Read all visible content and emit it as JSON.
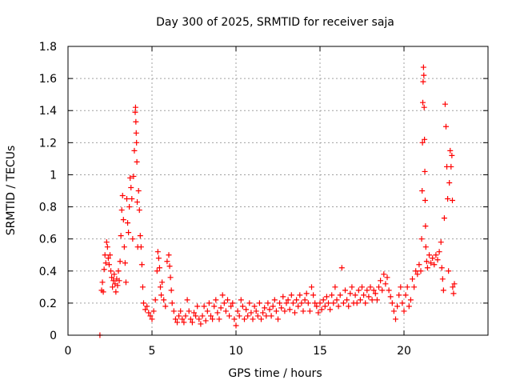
{
  "chart_data": {
    "type": "scatter",
    "title": "Day 300 of 2025, SRMTID for receiver saja",
    "xlabel": "GPS time / hours",
    "ylabel": "SRMTID / TECUs",
    "xlim": [
      0,
      25
    ],
    "ylim": [
      0,
      1.8
    ],
    "xticks": [
      0,
      5,
      10,
      15,
      20
    ],
    "yticks": [
      0,
      0.2,
      0.4,
      0.6,
      0.8,
      1,
      1.2,
      1.4,
      1.6,
      1.8
    ],
    "xtick_labels": [
      "0",
      "5",
      "10",
      "15",
      "20"
    ],
    "ytick_labels": [
      "0",
      "0.2",
      "0.4",
      "0.6",
      "0.8",
      "1",
      "1.2",
      "1.4",
      "1.6",
      "1.8"
    ],
    "grid": true,
    "marker": "+",
    "series": [
      {
        "name": "saja",
        "color": "#ff0000",
        "points": [
          [
            1.9,
            0.0
          ],
          [
            2.0,
            0.28
          ],
          [
            2.05,
            0.33
          ],
          [
            2.1,
            0.27
          ],
          [
            2.15,
            0.41
          ],
          [
            2.2,
            0.5
          ],
          [
            2.25,
            0.45
          ],
          [
            2.3,
            0.58
          ],
          [
            2.35,
            0.55
          ],
          [
            2.4,
            0.48
          ],
          [
            2.45,
            0.44
          ],
          [
            2.5,
            0.5
          ],
          [
            2.55,
            0.4
          ],
          [
            2.6,
            0.36
          ],
          [
            2.65,
            0.3
          ],
          [
            2.7,
            0.34
          ],
          [
            2.75,
            0.38
          ],
          [
            2.8,
            0.32
          ],
          [
            2.85,
            0.27
          ],
          [
            2.9,
            0.35
          ],
          [
            2.95,
            0.31
          ],
          [
            3.0,
            0.4
          ],
          [
            3.05,
            0.34
          ],
          [
            3.1,
            0.46
          ],
          [
            3.15,
            0.62
          ],
          [
            3.2,
            0.78
          ],
          [
            3.25,
            0.87
          ],
          [
            3.3,
            0.72
          ],
          [
            3.35,
            0.55
          ],
          [
            3.4,
            0.45
          ],
          [
            3.45,
            0.33
          ],
          [
            3.5,
            0.85
          ],
          [
            3.55,
            0.7
          ],
          [
            3.6,
            0.64
          ],
          [
            3.65,
            0.8
          ],
          [
            3.7,
            0.98
          ],
          [
            3.75,
            0.92
          ],
          [
            3.8,
            0.85
          ],
          [
            3.85,
            0.6
          ],
          [
            3.9,
            0.99
          ],
          [
            3.95,
            1.15
          ],
          [
            4.0,
            1.39
          ],
          [
            4.02,
            1.42
          ],
          [
            4.04,
            1.33
          ],
          [
            4.06,
            1.26
          ],
          [
            4.08,
            1.2
          ],
          [
            4.1,
            1.08
          ],
          [
            4.12,
            0.83
          ],
          [
            4.15,
            0.55
          ],
          [
            4.2,
            0.9
          ],
          [
            4.25,
            0.78
          ],
          [
            4.3,
            0.62
          ],
          [
            4.35,
            0.55
          ],
          [
            4.4,
            0.44
          ],
          [
            4.45,
            0.3
          ],
          [
            4.5,
            0.2
          ],
          [
            4.6,
            0.16
          ],
          [
            4.7,
            0.18
          ],
          [
            4.8,
            0.14
          ],
          [
            4.9,
            0.12
          ],
          [
            5.0,
            0.1
          ],
          [
            5.1,
            0.15
          ],
          [
            5.2,
            0.22
          ],
          [
            5.3,
            0.4
          ],
          [
            5.35,
            0.52
          ],
          [
            5.4,
            0.48
          ],
          [
            5.45,
            0.42
          ],
          [
            5.5,
            0.3
          ],
          [
            5.55,
            0.25
          ],
          [
            5.6,
            0.33
          ],
          [
            5.7,
            0.22
          ],
          [
            5.8,
            0.18
          ],
          [
            5.9,
            0.46
          ],
          [
            6.0,
            0.5
          ],
          [
            6.05,
            0.43
          ],
          [
            6.1,
            0.36
          ],
          [
            6.15,
            0.28
          ],
          [
            6.2,
            0.2
          ],
          [
            6.3,
            0.15
          ],
          [
            6.4,
            0.1
          ],
          [
            6.5,
            0.08
          ],
          [
            6.6,
            0.12
          ],
          [
            6.7,
            0.15
          ],
          [
            6.8,
            0.1
          ],
          [
            6.9,
            0.08
          ],
          [
            7.0,
            0.12
          ],
          [
            7.1,
            0.22
          ],
          [
            7.2,
            0.15
          ],
          [
            7.3,
            0.1
          ],
          [
            7.4,
            0.08
          ],
          [
            7.5,
            0.14
          ],
          [
            7.6,
            0.12
          ],
          [
            7.7,
            0.18
          ],
          [
            7.8,
            0.1
          ],
          [
            7.9,
            0.07
          ],
          [
            8.0,
            0.12
          ],
          [
            8.1,
            0.18
          ],
          [
            8.2,
            0.09
          ],
          [
            8.3,
            0.15
          ],
          [
            8.4,
            0.2
          ],
          [
            8.5,
            0.12
          ],
          [
            8.6,
            0.1
          ],
          [
            8.7,
            0.18
          ],
          [
            8.8,
            0.22
          ],
          [
            8.9,
            0.14
          ],
          [
            9.0,
            0.1
          ],
          [
            9.1,
            0.17
          ],
          [
            9.2,
            0.25
          ],
          [
            9.3,
            0.2
          ],
          [
            9.4,
            0.15
          ],
          [
            9.5,
            0.22
          ],
          [
            9.6,
            0.12
          ],
          [
            9.7,
            0.18
          ],
          [
            9.8,
            0.2
          ],
          [
            9.9,
            0.1
          ],
          [
            10.0,
            0.06
          ],
          [
            10.1,
            0.15
          ],
          [
            10.2,
            0.12
          ],
          [
            10.3,
            0.22
          ],
          [
            10.4,
            0.18
          ],
          [
            10.5,
            0.1
          ],
          [
            10.6,
            0.16
          ],
          [
            10.7,
            0.12
          ],
          [
            10.8,
            0.2
          ],
          [
            10.9,
            0.14
          ],
          [
            11.0,
            0.1
          ],
          [
            11.1,
            0.18
          ],
          [
            11.2,
            0.15
          ],
          [
            11.3,
            0.12
          ],
          [
            11.4,
            0.2
          ],
          [
            11.5,
            0.1
          ],
          [
            11.6,
            0.14
          ],
          [
            11.7,
            0.17
          ],
          [
            11.8,
            0.12
          ],
          [
            11.9,
            0.2
          ],
          [
            12.0,
            0.16
          ],
          [
            12.1,
            0.12
          ],
          [
            12.2,
            0.18
          ],
          [
            12.3,
            0.22
          ],
          [
            12.4,
            0.15
          ],
          [
            12.5,
            0.1
          ],
          [
            12.6,
            0.2
          ],
          [
            12.7,
            0.17
          ],
          [
            12.8,
            0.24
          ],
          [
            12.9,
            0.15
          ],
          [
            13.0,
            0.2
          ],
          [
            13.1,
            0.22
          ],
          [
            13.2,
            0.16
          ],
          [
            13.3,
            0.25
          ],
          [
            13.4,
            0.2
          ],
          [
            13.5,
            0.14
          ],
          [
            13.6,
            0.22
          ],
          [
            13.7,
            0.18
          ],
          [
            13.8,
            0.25
          ],
          [
            13.9,
            0.2
          ],
          [
            14.0,
            0.15
          ],
          [
            14.1,
            0.22
          ],
          [
            14.2,
            0.26
          ],
          [
            14.3,
            0.2
          ],
          [
            14.4,
            0.15
          ],
          [
            14.5,
            0.3
          ],
          [
            14.6,
            0.25
          ],
          [
            14.7,
            0.2
          ],
          [
            14.8,
            0.18
          ],
          [
            14.9,
            0.14
          ],
          [
            15.0,
            0.2
          ],
          [
            15.1,
            0.16
          ],
          [
            15.2,
            0.22
          ],
          [
            15.3,
            0.18
          ],
          [
            15.4,
            0.24
          ],
          [
            15.5,
            0.2
          ],
          [
            15.6,
            0.16
          ],
          [
            15.7,
            0.25
          ],
          [
            15.8,
            0.2
          ],
          [
            15.9,
            0.3
          ],
          [
            16.0,
            0.22
          ],
          [
            16.1,
            0.18
          ],
          [
            16.2,
            0.25
          ],
          [
            16.3,
            0.42
          ],
          [
            16.4,
            0.2
          ],
          [
            16.5,
            0.28
          ],
          [
            16.6,
            0.22
          ],
          [
            16.7,
            0.18
          ],
          [
            16.8,
            0.26
          ],
          [
            16.9,
            0.3
          ],
          [
            17.0,
            0.2
          ],
          [
            17.1,
            0.25
          ],
          [
            17.2,
            0.2
          ],
          [
            17.3,
            0.28
          ],
          [
            17.4,
            0.22
          ],
          [
            17.5,
            0.3
          ],
          [
            17.6,
            0.25
          ],
          [
            17.7,
            0.2
          ],
          [
            17.8,
            0.28
          ],
          [
            17.9,
            0.24
          ],
          [
            18.0,
            0.3
          ],
          [
            18.1,
            0.22
          ],
          [
            18.2,
            0.28
          ],
          [
            18.3,
            0.26
          ],
          [
            18.4,
            0.22
          ],
          [
            18.5,
            0.3
          ],
          [
            18.6,
            0.34
          ],
          [
            18.7,
            0.28
          ],
          [
            18.8,
            0.38
          ],
          [
            18.9,
            0.32
          ],
          [
            19.0,
            0.36
          ],
          [
            19.1,
            0.28
          ],
          [
            19.2,
            0.24
          ],
          [
            19.3,
            0.2
          ],
          [
            19.4,
            0.15
          ],
          [
            19.5,
            0.1
          ],
          [
            19.6,
            0.18
          ],
          [
            19.7,
            0.25
          ],
          [
            19.8,
            0.3
          ],
          [
            19.9,
            0.2
          ],
          [
            20.0,
            0.15
          ],
          [
            20.1,
            0.25
          ],
          [
            20.2,
            0.3
          ],
          [
            20.3,
            0.18
          ],
          [
            20.4,
            0.22
          ],
          [
            20.5,
            0.35
          ],
          [
            20.6,
            0.3
          ],
          [
            20.7,
            0.4
          ],
          [
            20.8,
            0.38
          ],
          [
            20.9,
            0.44
          ],
          [
            21.0,
            0.4
          ],
          [
            21.05,
            0.6
          ],
          [
            21.08,
            0.9
          ],
          [
            21.1,
            1.2
          ],
          [
            21.12,
            1.45
          ],
          [
            21.14,
            1.58
          ],
          [
            21.16,
            1.67
          ],
          [
            21.18,
            1.62
          ],
          [
            21.2,
            1.42
          ],
          [
            21.22,
            1.22
          ],
          [
            21.24,
            1.02
          ],
          [
            21.26,
            0.84
          ],
          [
            21.28,
            0.68
          ],
          [
            21.3,
            0.55
          ],
          [
            21.35,
            0.46
          ],
          [
            21.4,
            0.42
          ],
          [
            21.5,
            0.5
          ],
          [
            21.6,
            0.45
          ],
          [
            21.7,
            0.48
          ],
          [
            21.8,
            0.44
          ],
          [
            21.9,
            0.5
          ],
          [
            22.0,
            0.47
          ],
          [
            22.1,
            0.52
          ],
          [
            22.2,
            0.58
          ],
          [
            22.25,
            0.42
          ],
          [
            22.3,
            0.35
          ],
          [
            22.35,
            0.28
          ],
          [
            22.4,
            0.73
          ],
          [
            22.45,
            1.44
          ],
          [
            22.5,
            1.3
          ],
          [
            22.55,
            1.05
          ],
          [
            22.6,
            0.85
          ],
          [
            22.65,
            0.4
          ],
          [
            22.7,
            0.95
          ],
          [
            22.75,
            1.15
          ],
          [
            22.8,
            1.05
          ],
          [
            22.85,
            1.12
          ],
          [
            22.88,
            0.84
          ],
          [
            22.9,
            0.3
          ],
          [
            22.95,
            0.26
          ],
          [
            23.0,
            0.32
          ]
        ]
      }
    ]
  }
}
